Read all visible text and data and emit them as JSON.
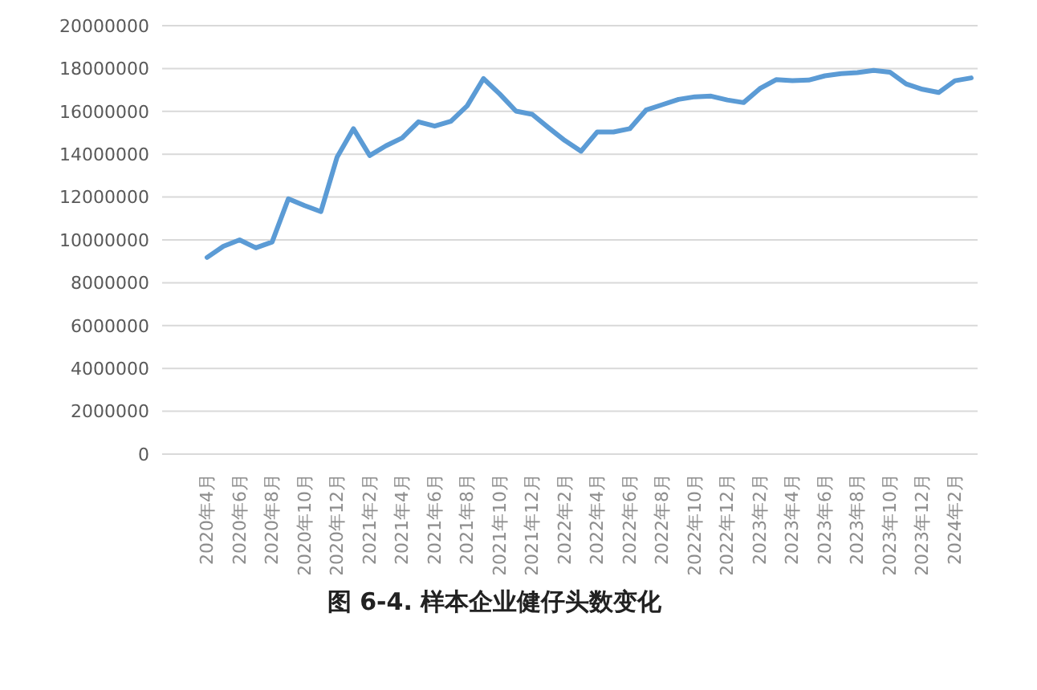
{
  "chart_data": {
    "type": "line",
    "title": "图 6-4. 样本企业健仔头数变化",
    "categories": [
      "2020年4月",
      null,
      "2020年6月",
      null,
      "2020年8月",
      null,
      "2020年10月",
      null,
      "2020年12月",
      null,
      "2021年2月",
      null,
      "2021年4月",
      null,
      "2021年6月",
      null,
      "2021年8月",
      null,
      "2021年10月",
      null,
      "2021年12月",
      null,
      "2022年2月",
      null,
      "2022年4月",
      null,
      "2022年6月",
      null,
      "2022年8月",
      null,
      "2022年10月",
      null,
      "2022年12月",
      null,
      "2023年2月",
      null,
      "2023年4月",
      null,
      "2023年6月",
      null,
      "2023年8月",
      null,
      "2023年10月",
      null,
      "2023年12月",
      null,
      "2024年2月",
      null
    ],
    "series": [
      {
        "color": "#5b9bd5",
        "values": [
          9180000,
          9700000,
          10000000,
          9630000,
          9900000,
          11920000,
          11600000,
          11320000,
          13870000,
          15190000,
          13940000,
          14390000,
          14760000,
          15510000,
          15310000,
          15540000,
          16260000,
          17530000,
          16810000,
          16010000,
          15860000,
          15240000,
          14640000,
          14140000,
          15040000,
          15040000,
          15190000,
          16060000,
          16310000,
          16560000,
          16680000,
          16710000,
          16530000,
          16410000,
          17060000,
          17480000,
          17430000,
          17460000,
          17660000,
          17760000,
          17810000,
          17910000,
          17830000,
          17280000,
          17030000,
          16880000,
          17430000,
          17560000
        ]
      }
    ],
    "ylim": [
      0,
      20000000
    ],
    "yticks": [
      0,
      2000000,
      4000000,
      6000000,
      8000000,
      10000000,
      12000000,
      14000000,
      16000000,
      18000000,
      20000000
    ],
    "grid": "y",
    "legend": false,
    "marker": "none",
    "line_style": "solid"
  }
}
